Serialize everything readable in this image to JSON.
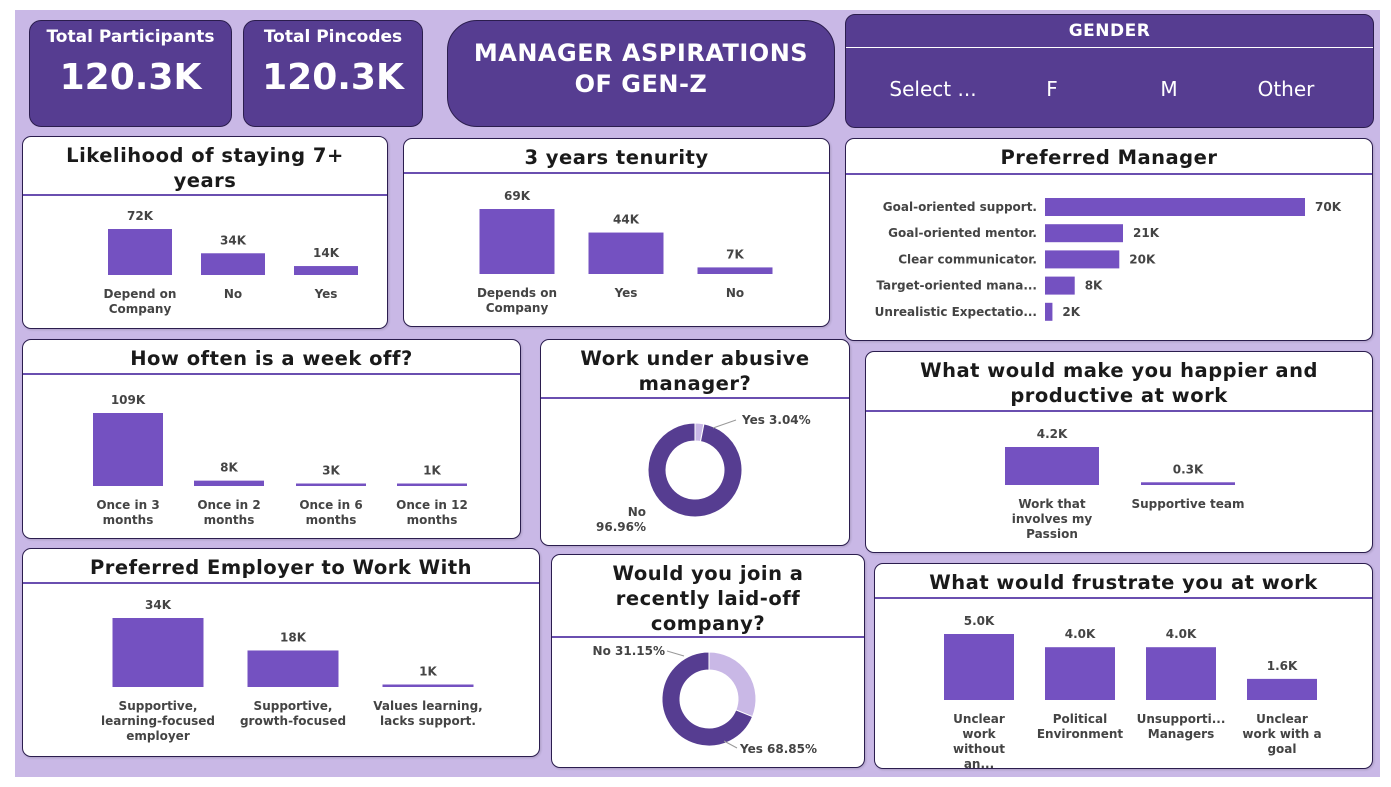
{
  "kpis": {
    "participants": {
      "label": "Total Participants",
      "value": "120.3K"
    },
    "pincodes": {
      "label": "Total Pincodes",
      "value": "120.3K"
    }
  },
  "title": {
    "line1": "MANAGER ASPIRATIONS",
    "line2": "OF GEN-Z"
  },
  "gender_slicer": {
    "heading": "GENDER",
    "options": [
      "Select ...",
      "F",
      "M",
      "Other"
    ]
  },
  "colors": {
    "bar": "#7451c1",
    "dark": "#563d91",
    "light": "#c9b8e6",
    "background": "#c9b8e6"
  },
  "chart_data": [
    {
      "id": "stay7",
      "type": "bar",
      "title": "Likelihood of staying 7+ years",
      "categories": [
        "Depend on Company",
        "No",
        "Yes"
      ],
      "values": [
        72,
        34,
        14
      ],
      "labels": [
        "72K",
        "34K",
        "14K"
      ]
    },
    {
      "id": "tenure3",
      "type": "bar",
      "title": "3 years tenurity",
      "categories": [
        "Depends on Company",
        "Yes",
        "No"
      ],
      "values": [
        69,
        44,
        7
      ],
      "labels": [
        "69K",
        "44K",
        "7K"
      ]
    },
    {
      "id": "manager",
      "type": "bar",
      "orientation": "horizontal",
      "title": "Preferred Manager",
      "categories": [
        "Goal-oriented support.",
        "Goal-oriented mentor.",
        "Clear communicator.",
        "Target-oriented mana...",
        "Unrealistic Expectatio..."
      ],
      "values": [
        70,
        21,
        20,
        8,
        2
      ],
      "labels": [
        "70K",
        "21K",
        "20K",
        "8K",
        "2K"
      ]
    },
    {
      "id": "weekoff",
      "type": "bar",
      "title": "How often is a week off?",
      "categories": [
        "Once in 3 months",
        "Once in 2 months",
        "Once in 6 months",
        "Once in 12 months"
      ],
      "values": [
        109,
        8,
        3,
        1
      ],
      "labels": [
        "109K",
        "8K",
        "3K",
        "1K"
      ]
    },
    {
      "id": "abusive",
      "type": "pie",
      "donut": true,
      "title": "Work under abusive manager?",
      "slices": [
        {
          "name": "Yes",
          "value": 3.04,
          "label": "Yes 3.04%"
        },
        {
          "name": "No",
          "value": 96.96,
          "label": "No 96.96%"
        }
      ]
    },
    {
      "id": "happier",
      "type": "bar",
      "title": "What would make you happier and productive at work",
      "categories": [
        "Work that involves my Passion",
        "Supportive team"
      ],
      "values": [
        4.2,
        0.3
      ],
      "labels": [
        "4.2K",
        "0.3K"
      ]
    },
    {
      "id": "employer",
      "type": "bar",
      "title": "Preferred Employer to Work With",
      "categories": [
        "Supportive, learning-focused employer",
        "Supportive, growth-focused",
        "Values learning, lacks support."
      ],
      "values": [
        34,
        18,
        1
      ],
      "labels": [
        "34K",
        "18K",
        "1K"
      ]
    },
    {
      "id": "laidoff",
      "type": "pie",
      "donut": true,
      "title": "Would you join a recently laid-off company?",
      "slices": [
        {
          "name": "No",
          "value": 31.15,
          "label": "No 31.15%"
        },
        {
          "name": "Yes",
          "value": 68.85,
          "label": "Yes 68.85%"
        }
      ]
    },
    {
      "id": "frustrate",
      "type": "bar",
      "title": "What would frustrate you at work",
      "categories": [
        "Unclear work without an...",
        "Political Environment",
        "Unsupporti... Managers",
        "Unclear work with a goal"
      ],
      "values": [
        5.0,
        4.0,
        4.0,
        1.6
      ],
      "labels": [
        "5.0K",
        "4.0K",
        "4.0K",
        "1.6K"
      ]
    }
  ]
}
